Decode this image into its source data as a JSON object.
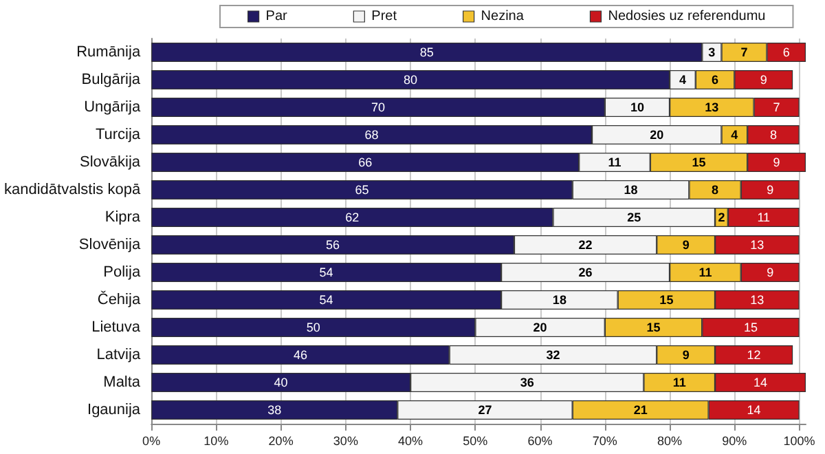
{
  "chart_data": {
    "type": "bar",
    "orientation": "horizontal",
    "stacked": true,
    "data_labels": true,
    "grid": "x",
    "legend": "top",
    "categories": [
      "Rumānija",
      "Bulgārija",
      "Ungārija",
      "Turcija",
      "Slovākija",
      "kandidātvalstis kopā",
      "Kipra",
      "Slovēnija",
      "Polija",
      "Čehija",
      "Lietuva",
      "Latvija",
      "Malta",
      "Igaunija"
    ],
    "series": [
      {
        "name": "Par",
        "color": "#221b63",
        "values": [
          85,
          80,
          70,
          68,
          66,
          65,
          62,
          56,
          54,
          54,
          50,
          46,
          40,
          38
        ]
      },
      {
        "name": "Pret",
        "color": "#f4f4f4",
        "values": [
          3,
          4,
          10,
          20,
          11,
          18,
          25,
          22,
          26,
          18,
          20,
          32,
          36,
          27
        ]
      },
      {
        "name": "Nezina",
        "color": "#f2c230",
        "values": [
          7,
          6,
          13,
          4,
          15,
          8,
          2,
          9,
          11,
          15,
          15,
          9,
          11,
          21
        ]
      },
      {
        "name": "Nedosies uz referendumu",
        "color": "#c8161d",
        "values": [
          6,
          9,
          7,
          8,
          9,
          9,
          11,
          13,
          9,
          13,
          15,
          12,
          14,
          14
        ]
      }
    ],
    "xlim": [
      0,
      101
    ],
    "xticks": [
      {
        "value": 0,
        "label": "0%"
      },
      {
        "value": 10,
        "label": "10%"
      },
      {
        "value": 20,
        "label": "20%"
      },
      {
        "value": 30,
        "label": "30%"
      },
      {
        "value": 40,
        "label": "40%"
      },
      {
        "value": 50,
        "label": "50%"
      },
      {
        "value": 60,
        "label": "60%"
      },
      {
        "value": 70,
        "label": "70%"
      },
      {
        "value": 80,
        "label": "80%"
      },
      {
        "value": 90,
        "label": "90%"
      },
      {
        "value": 100,
        "label": "100%"
      }
    ]
  }
}
